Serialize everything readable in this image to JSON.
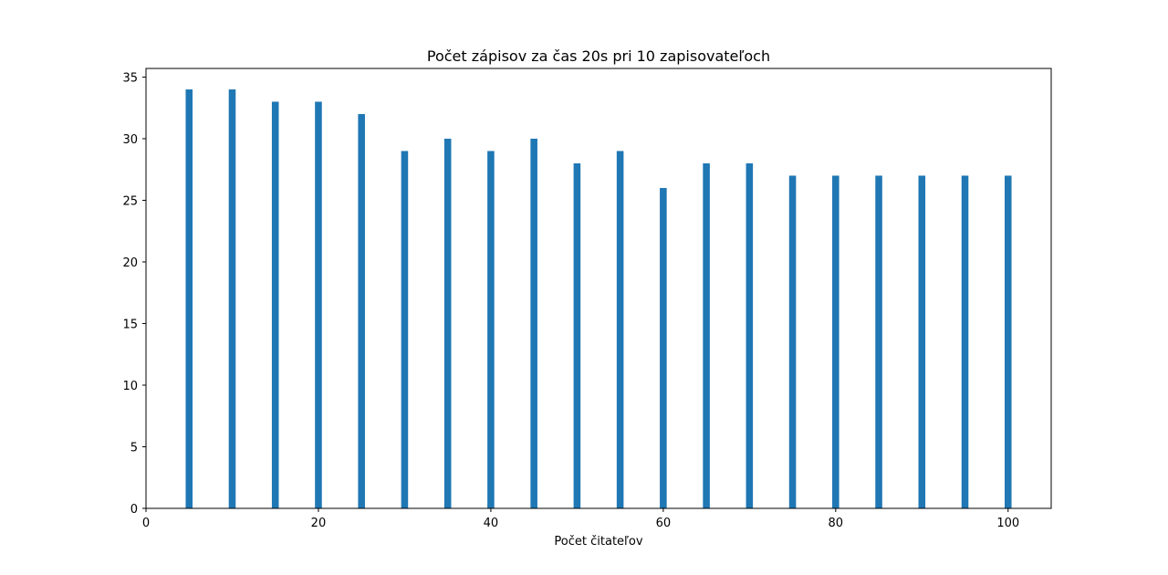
{
  "chart_data": {
    "type": "bar",
    "title": "Počet zápisov za čas 20s pri 10 zapisovateľoch",
    "xlabel": "Počet čitateľov",
    "ylabel": "",
    "x": [
      5,
      10,
      15,
      20,
      25,
      30,
      35,
      40,
      45,
      50,
      55,
      60,
      65,
      70,
      75,
      80,
      85,
      90,
      95,
      100
    ],
    "values": [
      34,
      34,
      33,
      33,
      32,
      29,
      30,
      29,
      30,
      28,
      29,
      26,
      28,
      28,
      27,
      27,
      27,
      27,
      27,
      27
    ],
    "bar_width": 0.8,
    "xlim": [
      0,
      105
    ],
    "ylim": [
      0,
      35.7
    ],
    "x_ticks": [
      0,
      20,
      40,
      60,
      80,
      100
    ],
    "y_ticks": [
      0,
      5,
      10,
      15,
      20,
      25,
      30,
      35
    ],
    "x_tick_labels": [
      "0",
      "20",
      "40",
      "60",
      "80",
      "100"
    ],
    "y_tick_labels": [
      "0",
      "5",
      "10",
      "15",
      "20",
      "25",
      "30",
      "35"
    ],
    "bar_color": "#1f77b4",
    "grid": false,
    "legend": false
  }
}
